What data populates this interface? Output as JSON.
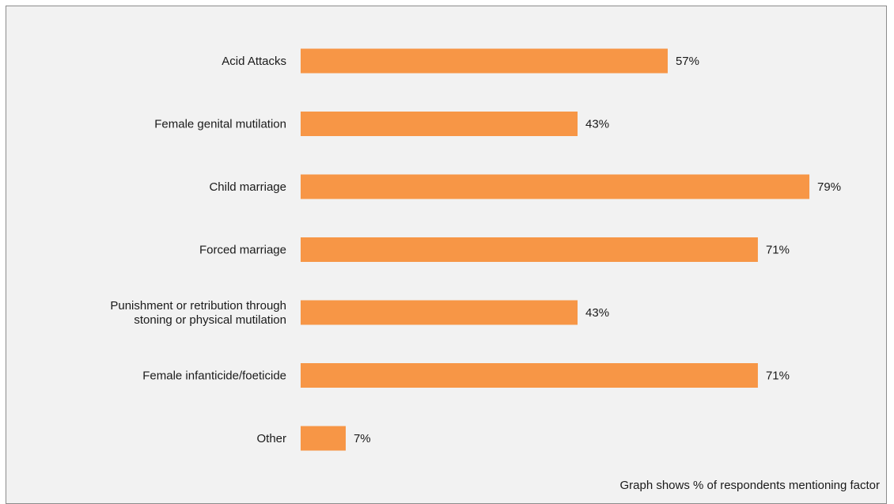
{
  "chart_data": {
    "type": "bar",
    "orientation": "horizontal",
    "categories": [
      "Acid Attacks",
      "Female genital mutilation",
      "Child marriage",
      "Forced marriage",
      "Punishment or retribution through stoning or physical mutilation",
      "Female infanticide/foeticide",
      "Other"
    ],
    "category_lines": [
      [
        "Acid Attacks"
      ],
      [
        "Female genital mutilation"
      ],
      [
        "Child marriage"
      ],
      [
        "Forced marriage"
      ],
      [
        "Punishment or retribution through",
        "stoning or physical mutilation"
      ],
      [
        "Female infanticide/foeticide"
      ],
      [
        "Other"
      ]
    ],
    "values": [
      57,
      43,
      79,
      71,
      43,
      71,
      7
    ],
    "value_labels": [
      "57%",
      "43%",
      "79%",
      "71%",
      "43%",
      "71%",
      "7%"
    ],
    "xlim": [
      0,
      100
    ],
    "grid": false,
    "bar_color": "#f79646"
  },
  "footnote": "Graph shows % of respondents mentioning factor"
}
